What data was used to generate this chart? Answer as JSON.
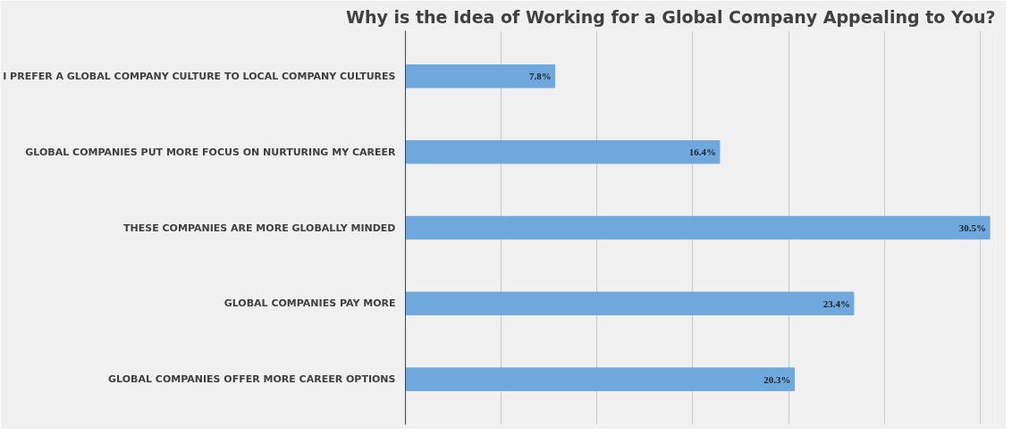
{
  "chart_data": {
    "type": "bar",
    "orientation": "horizontal",
    "title": "Why is the Idea of Working for a Global Company Appealing to You?",
    "categories": [
      "I PREFER A GLOBAL COMPANY CULTURE TO LOCAL COMPANY CULTURES",
      "GLOBAL COMPANIES PUT MORE FOCUS ON NURTURING MY CAREER",
      "THESE COMPANIES ARE MORE GLOBALLY MINDED",
      "GLOBAL COMPANIES PAY MORE",
      "GLOBAL COMPANIES OFFER MORE CAREER OPTIONS"
    ],
    "values": [
      7.8,
      16.4,
      30.5,
      23.4,
      20.3
    ],
    "value_labels": [
      "7.8%",
      "16.4%",
      "30.5%",
      "23.4%",
      "20.3%"
    ],
    "color": "#6fa8dc",
    "xlim": [
      0,
      30.8
    ],
    "xticks": [
      {
        "value": 0,
        "label": null
      },
      {
        "value": 5,
        "label": null
      },
      {
        "value": 10,
        "label": null
      },
      {
        "value": 15,
        "label": null
      },
      {
        "value": 20,
        "label": null
      },
      {
        "value": 25,
        "label": null
      },
      {
        "value": 30,
        "label": null
      }
    ],
    "grid": "x",
    "tick_labels": "y"
  }
}
